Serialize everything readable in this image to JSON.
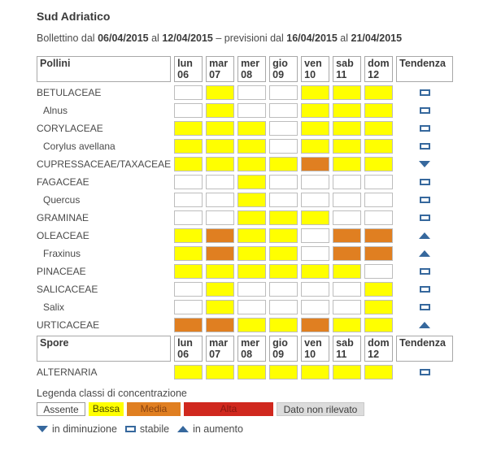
{
  "page": {
    "title": "Sud Adriatico",
    "subtitle": {
      "prefix": "Bollettino dal",
      "date_from": "06/04/2015",
      "al1": "al",
      "date_to": "12/04/2015",
      "middle": "– previsioni dal",
      "forecast_from": "16/04/2015",
      "al2": "al",
      "forecast_to": "21/04/2015"
    }
  },
  "colors": {
    "assente": "#ffffff",
    "bassa": "#ffff00",
    "media": "#e07f21",
    "alta": "#d0281e",
    "non_rilevato": "#dcdcdc",
    "trend_blue": "#36689d"
  },
  "table": {
    "pollen_header": "Pollini",
    "spore_header": "Spore",
    "trend_header": "Tendenza",
    "days": [
      {
        "name": "lun",
        "date": "06"
      },
      {
        "name": "mar",
        "date": "07"
      },
      {
        "name": "mer",
        "date": "08"
      },
      {
        "name": "gio",
        "date": "09"
      },
      {
        "name": "ven",
        "date": "10"
      },
      {
        "name": "sab",
        "date": "11"
      },
      {
        "name": "dom",
        "date": "12"
      }
    ],
    "pollen_rows": [
      {
        "label": "BETULACEAE",
        "indent": false,
        "cells": [
          "assente",
          "bassa",
          "assente",
          "assente",
          "bassa",
          "bassa",
          "bassa"
        ],
        "trend": "stable"
      },
      {
        "label": "Alnus",
        "indent": true,
        "cells": [
          "assente",
          "bassa",
          "assente",
          "assente",
          "bassa",
          "bassa",
          "bassa"
        ],
        "trend": "stable"
      },
      {
        "label": "CORYLACEAE",
        "indent": false,
        "cells": [
          "bassa",
          "bassa",
          "bassa",
          "assente",
          "bassa",
          "bassa",
          "bassa"
        ],
        "trend": "stable"
      },
      {
        "label": "Corylus avellana",
        "indent": true,
        "cells": [
          "bassa",
          "bassa",
          "bassa",
          "assente",
          "bassa",
          "bassa",
          "bassa"
        ],
        "trend": "stable"
      },
      {
        "label": "CUPRESSACEAE/TAXACEAE",
        "indent": false,
        "cells": [
          "bassa",
          "bassa",
          "bassa",
          "bassa",
          "media",
          "bassa",
          "bassa"
        ],
        "trend": "down"
      },
      {
        "label": "FAGACEAE",
        "indent": false,
        "cells": [
          "assente",
          "assente",
          "bassa",
          "assente",
          "assente",
          "assente",
          "assente"
        ],
        "trend": "stable"
      },
      {
        "label": "Quercus",
        "indent": true,
        "cells": [
          "assente",
          "assente",
          "bassa",
          "assente",
          "assente",
          "assente",
          "assente"
        ],
        "trend": "stable"
      },
      {
        "label": "GRAMINAE",
        "indent": false,
        "cells": [
          "assente",
          "assente",
          "bassa",
          "bassa",
          "bassa",
          "assente",
          "assente"
        ],
        "trend": "stable"
      },
      {
        "label": "OLEACEAE",
        "indent": false,
        "cells": [
          "bassa",
          "media",
          "bassa",
          "bassa",
          "assente",
          "media",
          "media"
        ],
        "trend": "up"
      },
      {
        "label": "Fraxinus",
        "indent": true,
        "cells": [
          "bassa",
          "media",
          "bassa",
          "bassa",
          "assente",
          "media",
          "media"
        ],
        "trend": "up"
      },
      {
        "label": "PINACEAE",
        "indent": false,
        "cells": [
          "bassa",
          "bassa",
          "bassa",
          "bassa",
          "bassa",
          "bassa",
          "assente"
        ],
        "trend": "stable"
      },
      {
        "label": "SALICACEAE",
        "indent": false,
        "cells": [
          "assente",
          "bassa",
          "assente",
          "assente",
          "assente",
          "assente",
          "bassa"
        ],
        "trend": "stable"
      },
      {
        "label": "Salix",
        "indent": true,
        "cells": [
          "assente",
          "bassa",
          "assente",
          "assente",
          "assente",
          "assente",
          "bassa"
        ],
        "trend": "stable"
      },
      {
        "label": "URTICACEAE",
        "indent": false,
        "cells": [
          "media",
          "media",
          "bassa",
          "bassa",
          "media",
          "bassa",
          "bassa"
        ],
        "trend": "up"
      }
    ],
    "spore_rows": [
      {
        "label": "ALTERNARIA",
        "indent": false,
        "cells": [
          "bassa",
          "bassa",
          "bassa",
          "bassa",
          "bassa",
          "bassa",
          "bassa"
        ],
        "trend": "stable"
      }
    ]
  },
  "legend": {
    "title": "Legenda classi di concentrazione",
    "classes": [
      {
        "label": "Assente",
        "key": "assente"
      },
      {
        "label": "Bassa",
        "key": "bassa"
      },
      {
        "label": "Media",
        "key": "media"
      },
      {
        "label": "Alta",
        "key": "alta"
      },
      {
        "label": "Dato non rilevato",
        "key": "non_rilevato"
      }
    ],
    "trends": [
      {
        "icon": "down",
        "label": "in diminuzione"
      },
      {
        "icon": "stable",
        "label": "stabile"
      },
      {
        "icon": "up",
        "label": "in aumento"
      }
    ]
  }
}
